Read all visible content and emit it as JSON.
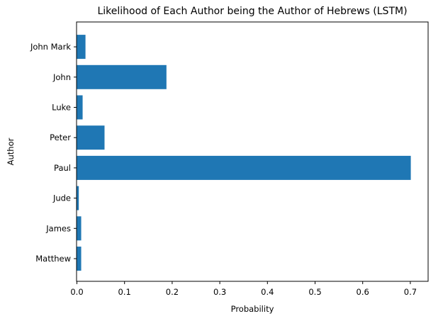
{
  "chart_data": {
    "type": "bar",
    "orientation": "horizontal",
    "title": "Likelihood of Each Author being the Author of Hebrews (LSTM)",
    "xlabel": "Probability",
    "ylabel": "Author",
    "categories": [
      "Matthew",
      "James",
      "Jude",
      "Paul",
      "Peter",
      "Luke",
      "John",
      "John Mark"
    ],
    "values": [
      0.009,
      0.009,
      0.004,
      0.701,
      0.058,
      0.012,
      0.188,
      0.018
    ],
    "xlim": [
      0.0,
      0.74
    ],
    "xticks": [
      0.0,
      0.1,
      0.2,
      0.3,
      0.4,
      0.5,
      0.6,
      0.7
    ],
    "xtick_labels": [
      "0.0",
      "0.1",
      "0.2",
      "0.3",
      "0.4",
      "0.5",
      "0.6",
      "0.7"
    ],
    "bar_color": "#1f77b4",
    "grid": false,
    "legend": "none"
  }
}
